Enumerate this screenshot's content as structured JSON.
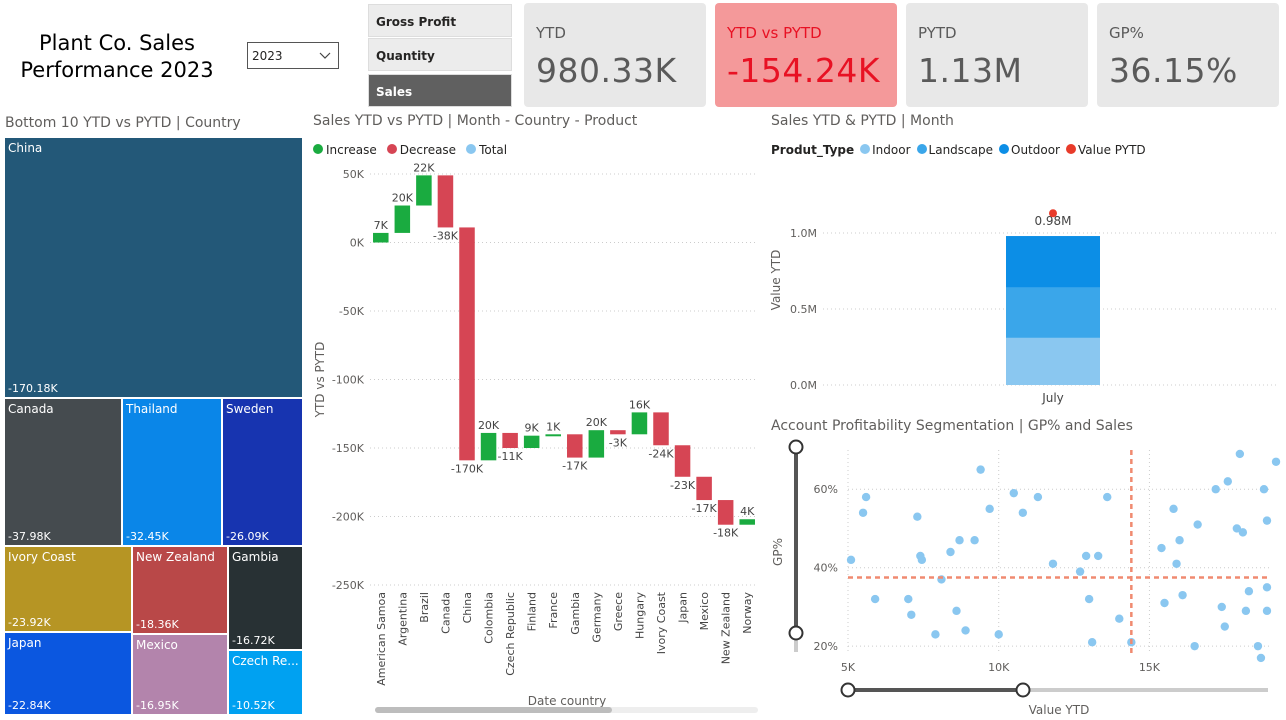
{
  "header": {
    "title_line1": "Plant Co. Sales",
    "title_line2": "Performance 2023",
    "year": "2023"
  },
  "slicer": {
    "items": [
      {
        "label": "Gross Profit",
        "active": false
      },
      {
        "label": "Quantity",
        "active": false
      },
      {
        "label": "Sales",
        "active": true
      }
    ]
  },
  "kpis": [
    {
      "label": "YTD",
      "value": "980.33K"
    },
    {
      "label": "YTD vs PYTD",
      "value": "-154.24K"
    },
    {
      "label": "PYTD",
      "value": "1.13M"
    },
    {
      "label": "GP%",
      "value": "36.15%"
    }
  ],
  "treemap": {
    "title": "Bottom 10 YTD vs PYTD | Country",
    "tiles": [
      {
        "name": "China",
        "value": "-170.18K",
        "color": "#235878"
      },
      {
        "name": "Canada",
        "value": "-37.98K",
        "color": "#454b4f"
      },
      {
        "name": "Thailand",
        "value": "-32.45K",
        "color": "#0a86e8"
      },
      {
        "name": "Sweden",
        "value": "-26.09K",
        "color": "#1734b0"
      },
      {
        "name": "Ivory Coast",
        "value": "-23.92K",
        "color": "#b69524"
      },
      {
        "name": "New Zealand",
        "value": "-18.36K",
        "color": "#b94848"
      },
      {
        "name": "Gambia",
        "value": "-16.72K",
        "color": "#283134"
      },
      {
        "name": "Japan",
        "value": "-22.84K",
        "color": "#0b57e0"
      },
      {
        "name": "Mexico",
        "value": "-16.95K",
        "color": "#b384ac"
      },
      {
        "name": "Czech Re...",
        "value": "-10.52K",
        "color": "#00a1f1"
      }
    ]
  },
  "waterfall": {
    "title": "Sales YTD vs PYTD | Month - Country - Product",
    "legend": [
      {
        "label": "Increase",
        "color": "#1aab40"
      },
      {
        "label": "Decrease",
        "color": "#d64554"
      },
      {
        "label": "Total",
        "color": "#8ac7f0"
      }
    ],
    "ylabel": "YTD vs PYTD",
    "xlabel": "Date country"
  },
  "stacked": {
    "title": "Sales YTD & PYTD | Month",
    "legend_title": "Produt_Type",
    "legend": [
      {
        "label": "Indoor",
        "color": "#8ac7f0"
      },
      {
        "label": "Landscape",
        "color": "#3aa6ea"
      },
      {
        "label": "Outdoor",
        "color": "#0c8ee6"
      },
      {
        "label": "Value PYTD",
        "color": "#e83b2a"
      }
    ],
    "ylabel": "Value YTD"
  },
  "scatter": {
    "title": "Account Profitability Segmentation | GP% and Sales",
    "ylabel": "GP%",
    "xlabel": "Value YTD"
  },
  "chart_data": [
    {
      "type": "bar",
      "subtype": "waterfall",
      "categories": [
        "American Samoa",
        "Argentina",
        "Brazil",
        "Canada",
        "China",
        "Colombia",
        "Czech Republic",
        "Finland",
        "France",
        "Gambia",
        "Germany",
        "Greece",
        "Hungary",
        "Ivory Coast",
        "Japan",
        "Mexico",
        "New Zealand",
        "Norway"
      ],
      "values": [
        7000,
        20000,
        22000,
        -38000,
        -170000,
        20000,
        -11000,
        9000,
        1000,
        -17000,
        20000,
        -3000,
        16000,
        -24000,
        -23000,
        -17000,
        -18000,
        4000
      ],
      "labels": [
        "7K",
        "20K",
        "22K",
        "-38K",
        "-170K",
        "20K",
        "-11K",
        "9K",
        "1K",
        "-17K",
        "20K",
        "-3K",
        "16K",
        "-24K",
        "-23K",
        "-17K",
        "-18K",
        "4K"
      ],
      "yticks": [
        "50K",
        "0K",
        "-50K",
        "-100K",
        "-150K",
        "-200K",
        "-250K"
      ],
      "ylim": [
        -250000,
        50000
      ],
      "ylabel": "YTD vs PYTD",
      "xlabel": "Date country"
    },
    {
      "type": "bar",
      "subtype": "stacked",
      "categories": [
        "July"
      ],
      "series": [
        {
          "name": "Indoor",
          "values": [
            310000
          ]
        },
        {
          "name": "Landscape",
          "values": [
            330000
          ]
        },
        {
          "name": "Outdoor",
          "values": [
            340000
          ]
        }
      ],
      "total_label": "0.98M",
      "pytd_marker": 1130000,
      "yticks": [
        "1.0M",
        "0.5M",
        "0.0M"
      ],
      "ylim": [
        0,
        1300000
      ],
      "ylabel": "Value YTD",
      "xlabel": ""
    },
    {
      "type": "scatter",
      "xticks": [
        "5K",
        "10K",
        "15K"
      ],
      "yticks": [
        "60%",
        "40%",
        "20%"
      ],
      "xlim": [
        5000,
        19000
      ],
      "ylim": [
        0.18,
        0.7
      ],
      "ref_x": 14400,
      "ref_y": 0.375,
      "points": [
        [
          5100,
          0.42
        ],
        [
          5500,
          0.54
        ],
        [
          5600,
          0.58
        ],
        [
          5900,
          0.32
        ],
        [
          7000,
          0.32
        ],
        [
          7100,
          0.28
        ],
        [
          7300,
          0.53
        ],
        [
          7400,
          0.43
        ],
        [
          7450,
          0.42
        ],
        [
          7900,
          0.23
        ],
        [
          8100,
          0.37
        ],
        [
          8400,
          0.44
        ],
        [
          8600,
          0.29
        ],
        [
          8700,
          0.47
        ],
        [
          8900,
          0.24
        ],
        [
          9200,
          0.47
        ],
        [
          9400,
          0.65
        ],
        [
          9700,
          0.55
        ],
        [
          10000,
          0.23
        ],
        [
          10500,
          0.59
        ],
        [
          10800,
          0.54
        ],
        [
          11300,
          0.58
        ],
        [
          11800,
          0.41
        ],
        [
          12700,
          0.39
        ],
        [
          12900,
          0.43
        ],
        [
          13000,
          0.32
        ],
        [
          13100,
          0.21
        ],
        [
          13300,
          0.43
        ],
        [
          13600,
          0.58
        ],
        [
          14000,
          0.27
        ],
        [
          14400,
          0.21
        ],
        [
          15400,
          0.45
        ],
        [
          15500,
          0.31
        ],
        [
          15800,
          0.55
        ],
        [
          15900,
          0.41
        ],
        [
          16000,
          0.47
        ],
        [
          16100,
          0.33
        ],
        [
          16500,
          0.2
        ],
        [
          16600,
          0.51
        ],
        [
          17200,
          0.6
        ],
        [
          17400,
          0.3
        ],
        [
          17500,
          0.25
        ],
        [
          17600,
          0.62
        ],
        [
          18000,
          0.69
        ],
        [
          18200,
          0.29
        ],
        [
          18300,
          0.34
        ],
        [
          18100,
          0.49
        ],
        [
          18600,
          0.2
        ],
        [
          18700,
          0.17
        ],
        [
          18800,
          0.6
        ],
        [
          18900,
          0.52
        ],
        [
          18900,
          0.29
        ],
        [
          18900,
          0.35
        ],
        [
          17900,
          0.5
        ],
        [
          19200,
          0.67
        ]
      ],
      "ylabel": "GP%",
      "xlabel": "Value YTD"
    }
  ]
}
